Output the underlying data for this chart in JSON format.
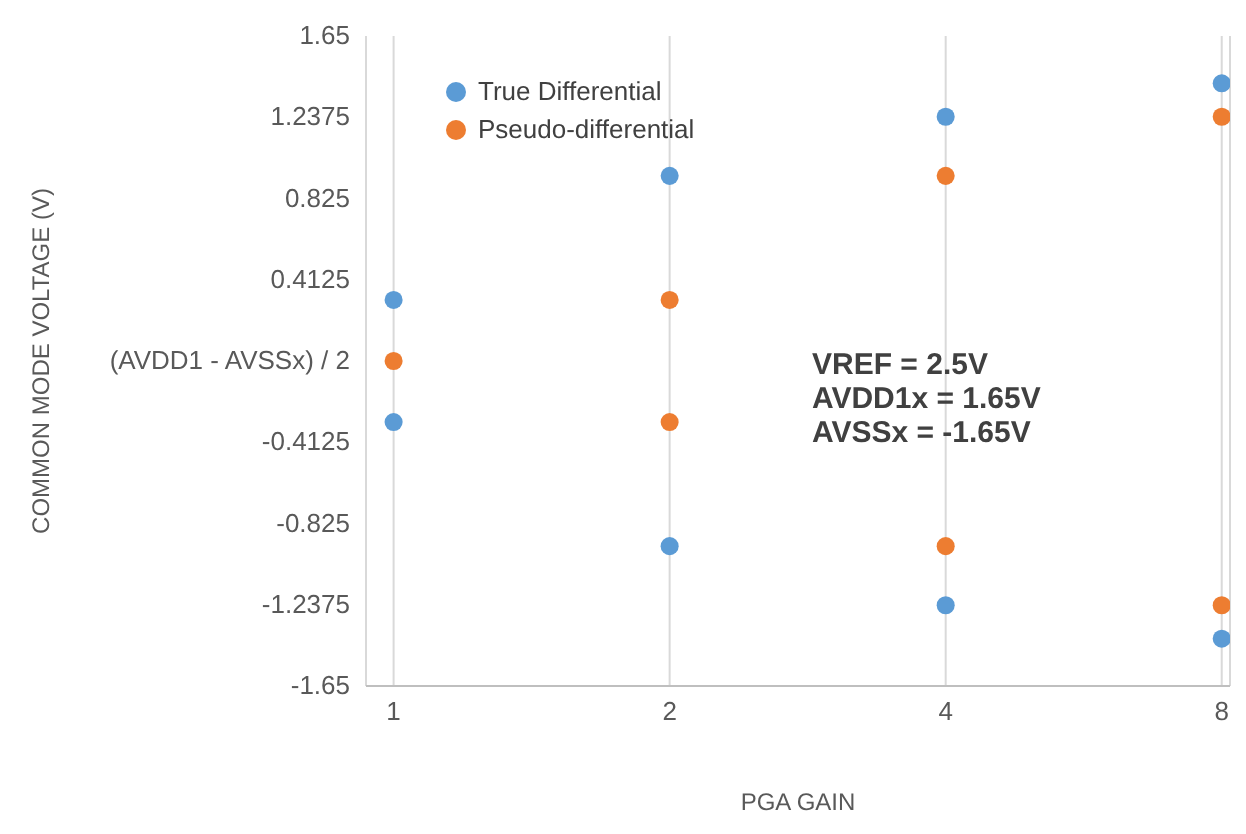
{
  "chart_data": {
    "type": "scatter",
    "xlabel": "PGA GAIN",
    "ylabel": "COMMON MODE VOLTAGE (V)",
    "categories": [
      "1",
      "2",
      "4",
      "8"
    ],
    "series": [
      {
        "name": "True Differential",
        "color": "#5b9bd5",
        "x": [
          "1",
          "1",
          "2",
          "2",
          "4",
          "4",
          "8",
          "8"
        ],
        "values": [
          0.31,
          -0.31,
          0.94,
          -0.94,
          1.24,
          -1.24,
          1.41,
          -1.41
        ]
      },
      {
        "name": "Pseudo-differential",
        "color": "#ed7d31",
        "x": [
          "1",
          "2",
          "2",
          "4",
          "4",
          "8",
          "8"
        ],
        "values": [
          0,
          0.31,
          -0.31,
          0.94,
          -0.94,
          1.24,
          -1.24
        ]
      }
    ],
    "ylim": [
      -1.65,
      1.65
    ],
    "yticks": [
      -1.65,
      -1.2375,
      -0.825,
      -0.4125,
      {
        "value": 0,
        "label": "(AVDD1 - AVSSx) / 2"
      },
      0.4125,
      0.825,
      1.2375,
      1.65
    ],
    "grid": "x",
    "legend": "top left",
    "marker": "circle",
    "annotations": [
      "VREF = 2.5V",
      "AVDD1x = 1.65V",
      "AVSSx = -1.65V"
    ]
  }
}
